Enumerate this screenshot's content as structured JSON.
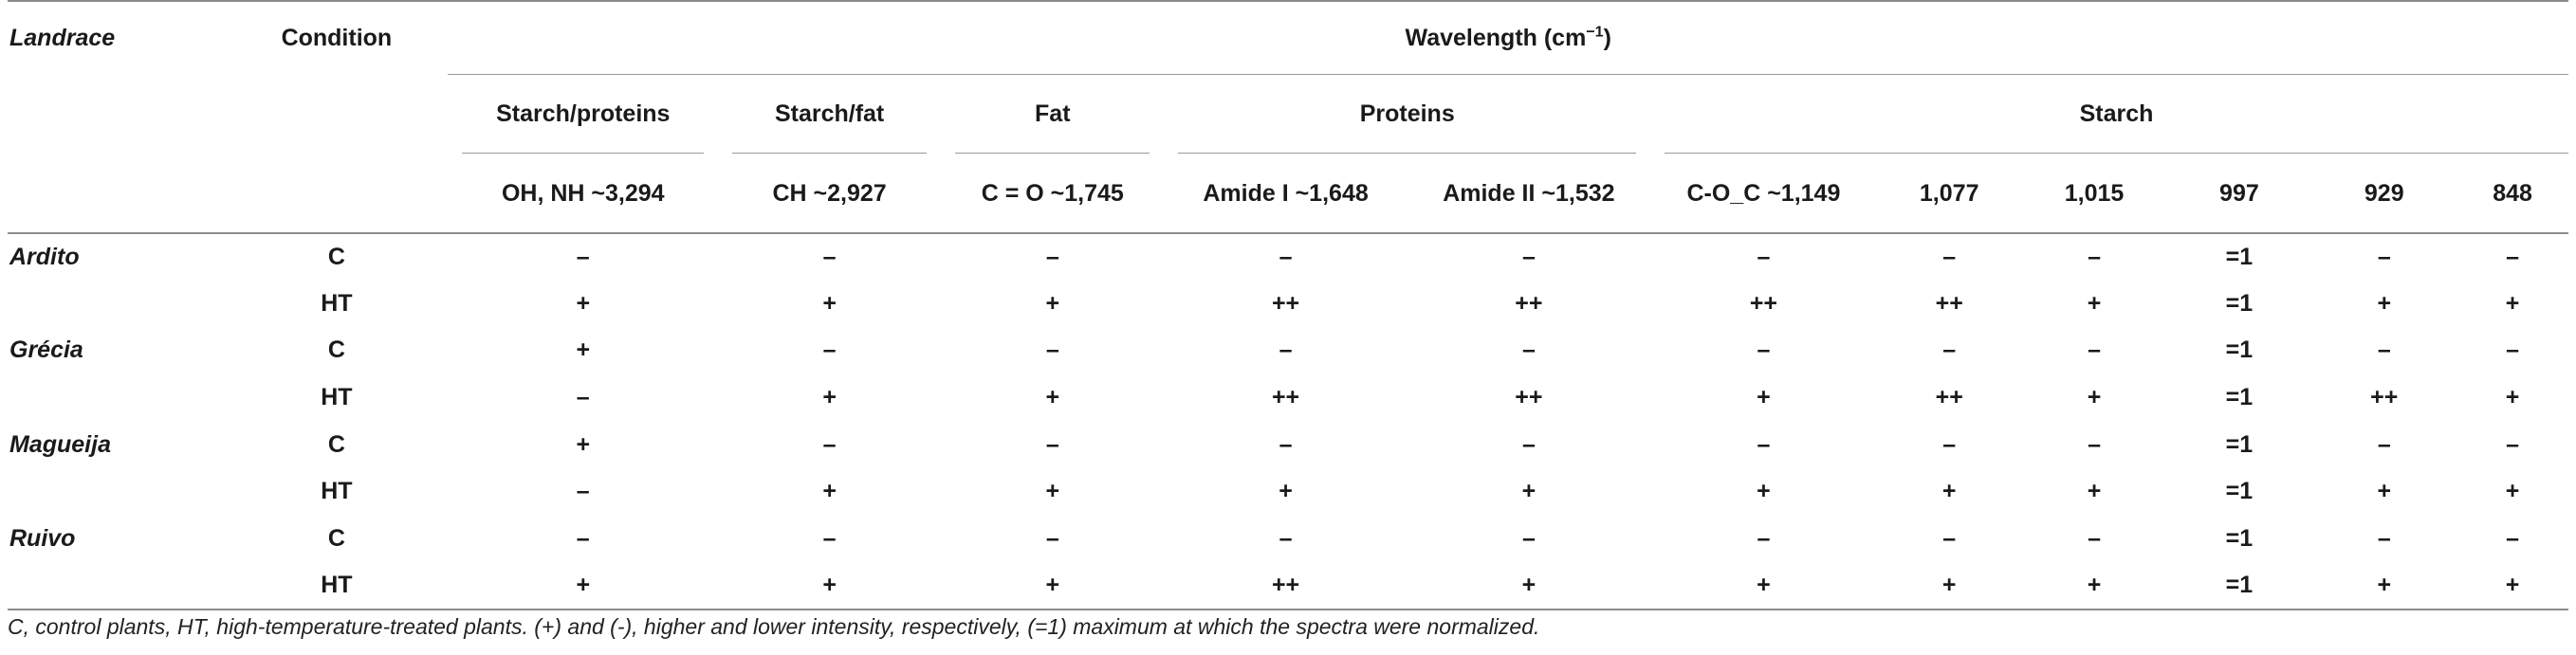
{
  "table": {
    "header": {
      "landrace": "Landrace",
      "condition": "Condition",
      "wavelength": "Wavelength (cm",
      "wavelength_sup": "−1",
      "wavelength_close": ")"
    },
    "groups": [
      {
        "label": "Starch/proteins",
        "span": 1
      },
      {
        "label": "Starch/fat",
        "span": 1
      },
      {
        "label": "Fat",
        "span": 1
      },
      {
        "label": "Proteins",
        "span": 2
      },
      {
        "label": "Starch",
        "span": 6
      }
    ],
    "bands": [
      "OH, NH ~3,294",
      "CH ~2,927",
      "C = O ~1,745",
      "Amide I ~1,648",
      "Amide II ~1,532",
      "C-O_C ~1,149",
      "1,077",
      "1,015",
      "997",
      "929",
      "848"
    ],
    "rows": [
      {
        "landrace": "Ardito",
        "condition": "C",
        "values": [
          "–",
          "–",
          "–",
          "–",
          "–",
          "–",
          "–",
          "–",
          "=1",
          "–",
          "–"
        ]
      },
      {
        "landrace": "",
        "condition": "HT",
        "values": [
          "+",
          "+",
          "+",
          "++",
          "++",
          "++",
          "++",
          "+",
          "=1",
          "+",
          "+"
        ]
      },
      {
        "landrace": "Grécia",
        "condition": "C",
        "values": [
          "+",
          "–",
          "–",
          "–",
          "–",
          "–",
          "–",
          "–",
          "=1",
          "–",
          "–"
        ]
      },
      {
        "landrace": "",
        "condition": "HT",
        "values": [
          "–",
          "+",
          "+",
          "++",
          "++",
          "+",
          "++",
          "+",
          "=1",
          "++",
          "+"
        ]
      },
      {
        "landrace": "Magueija",
        "condition": "C",
        "values": [
          "+",
          "–",
          "–",
          "–",
          "–",
          "–",
          "–",
          "–",
          "=1",
          "–",
          "–"
        ]
      },
      {
        "landrace": "",
        "condition": "HT",
        "values": [
          "–",
          "+",
          "+",
          "+",
          "+",
          "+",
          "+",
          "+",
          "=1",
          "+",
          "+"
        ]
      },
      {
        "landrace": "Ruivo",
        "condition": "C",
        "values": [
          "–",
          "–",
          "–",
          "–",
          "–",
          "–",
          "–",
          "–",
          "=1",
          "–",
          "–"
        ]
      },
      {
        "landrace": "",
        "condition": "HT",
        "values": [
          "+",
          "+",
          "+",
          "++",
          "+",
          "+",
          "+",
          "+",
          "=1",
          "+",
          "+"
        ]
      }
    ]
  },
  "footnote": "C, control plants, HT, high-temperature-treated plants. (+) and (-), higher and lower intensity, respectively, (=1) maximum at which the spectra were normalized."
}
